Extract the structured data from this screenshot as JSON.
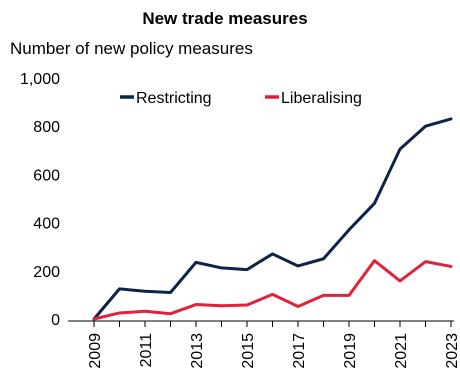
{
  "chart_data": {
    "type": "line",
    "title": "New trade measures",
    "ylabel": "Number of new policy measures",
    "xlabel": "",
    "x": [
      2009,
      2010,
      2011,
      2012,
      2013,
      2014,
      2015,
      2016,
      2017,
      2018,
      2019,
      2020,
      2021,
      2022,
      2023
    ],
    "x_tick_labels": [
      "2009",
      "2011",
      "2013",
      "2015",
      "2017",
      "2019",
      "2021",
      "2023"
    ],
    "y_tick_labels": [
      "0",
      "200",
      "400",
      "600",
      "800",
      "1,000"
    ],
    "y_ticks": [
      0,
      200,
      400,
      600,
      800,
      1000
    ],
    "ylim": [
      0,
      1000
    ],
    "xlim": [
      2009,
      2023
    ],
    "grid": false,
    "legend_position": "top",
    "series": [
      {
        "name": "Restricting",
        "color": "#0b2447",
        "values": [
          0,
          125,
          115,
          110,
          235,
          212,
          205,
          270,
          220,
          250,
          370,
          480,
          705,
          800,
          830
        ]
      },
      {
        "name": "Liberalising",
        "color": "#e0223a",
        "values": [
          0,
          25,
          32,
          22,
          60,
          55,
          58,
          102,
          52,
          98,
          98,
          242,
          158,
          238,
          218
        ]
      }
    ]
  }
}
